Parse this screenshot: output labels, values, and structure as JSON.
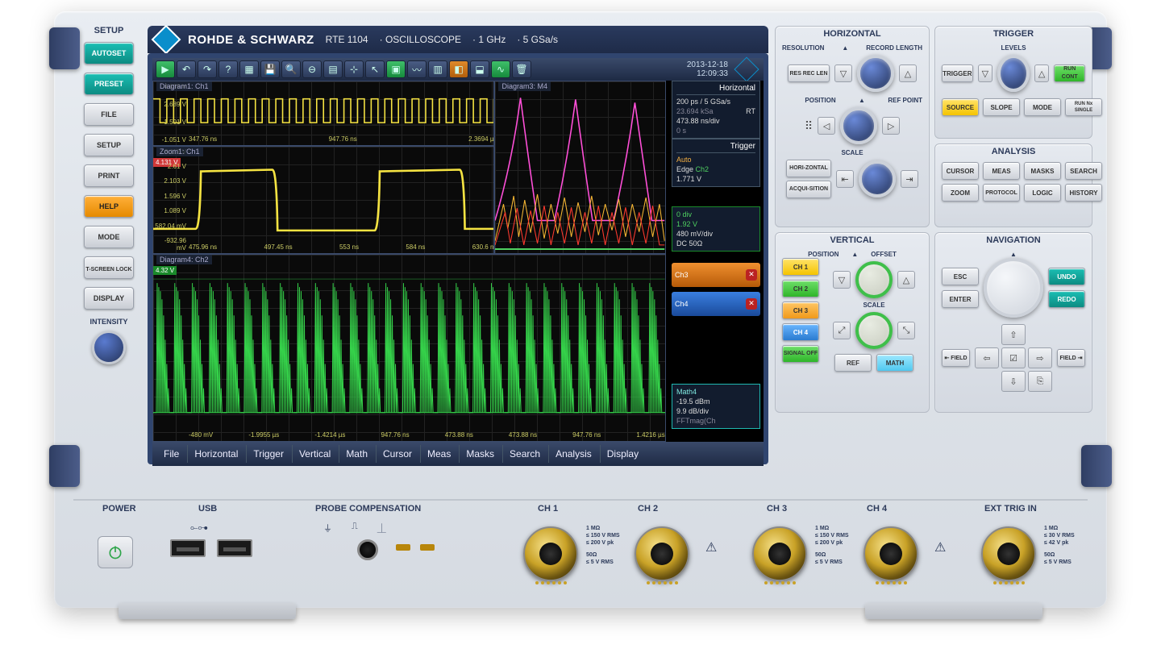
{
  "header": {
    "brand": "ROHDE & SCHWARZ",
    "model": "RTE 1104",
    "product": "OSCILLOSCOPE",
    "bandwidth": "1 GHz",
    "samplerate": "5 GSa/s"
  },
  "setup": {
    "title": "SETUP",
    "keys": [
      "AUTOSET",
      "PRESET",
      "FILE",
      "SETUP",
      "PRINT",
      "HELP",
      "MODE",
      "T-SCREEN LOCK",
      "DISPLAY"
    ],
    "intensity": "INTENSITY"
  },
  "toolbar": {
    "datetime_date": "2013-12-18",
    "datetime_time": "12:09:33"
  },
  "panes": {
    "p1": {
      "label": "Diagram1: Ch1",
      "y_ticks": [
        "4.639 V",
        "2.689 V",
        "1.501 V",
        "-1.051 V"
      ],
      "x_ticks": [
        "347.76 ns",
        "947.76 ns",
        "2.3694 µ"
      ],
      "trace_color": "#f5e342"
    },
    "p2": {
      "label": "Zoom1: Ch1",
      "marker": "4.131 V",
      "y_ticks": [
        "3.117 V",
        "2.61 V",
        "2.103 V",
        "1.596 V",
        "1.089 V",
        "582.04 mV",
        "-932.96 mV"
      ],
      "x_ticks": [
        "475.96 ns",
        "497.45 ns",
        "553 ns",
        "584 ns",
        "630.6 n"
      ],
      "trace_color": "#f5e342"
    },
    "p3": {
      "label": "Diagram3: M4",
      "trace_colors": [
        "#ff4fd8",
        "#4fd060",
        "#f7b733",
        "#ff3a2f"
      ]
    },
    "p4": {
      "label": "Diagram4: Ch2",
      "marker": "4.32 V",
      "y_ticks": [
        "3.84 V",
        "",
        "",
        "",
        "",
        ""
      ],
      "x_ticks": [
        "-1.9955 µs",
        "-1.4214 µs",
        "947.76 ns",
        "473.88 ns",
        "473.88 ns",
        "947.76 ns",
        "1.4216 µs"
      ],
      "bottom_left": "-480 mV",
      "trace_color": "#35d24a"
    }
  },
  "info": {
    "horizontal": {
      "title": "Horizontal",
      "res": "200 ps / 5 GSa/s",
      "reclen": "23.694 kSa",
      "rt": "RT",
      "tdiv": "473.88 ns/div",
      "pos": "0 s"
    },
    "trigger": {
      "title": "Trigger",
      "mode": "Auto",
      "type": "Edge",
      "source": "Ch2",
      "level": "1.771 V"
    },
    "ch2box": {
      "pos": "0 div",
      "vlevel": "1.92 V",
      "vdiv": "480 mV/div",
      "coupling": "DC 50Ω",
      "color": "#35d24a"
    },
    "ch3": {
      "label": "Ch3",
      "color": "#e67a18"
    },
    "ch4": {
      "label": "Ch4",
      "color": "#2a6fd0"
    },
    "math4": {
      "label": "Math4",
      "ref": "-19.5 dBm",
      "vdiv": "9.9 dB/div",
      "fn": "FFTmag(Ch",
      "color": "#1fb7b0"
    }
  },
  "menu": [
    "File",
    "Horizontal",
    "Trigger",
    "Vertical",
    "Math",
    "Cursor",
    "Meas",
    "Masks",
    "Search",
    "Analysis",
    "Display"
  ],
  "horizontal_panel": {
    "title": "HORIZONTAL",
    "resolution": "RESOLUTION",
    "reclen": "RECORD LENGTH",
    "position": "POSITION",
    "refpoint": "REF POINT",
    "scale": "SCALE",
    "keys": {
      "resreclen": "RES REC LEN",
      "horizontal": "HORI-ZONTAL",
      "acquisition": "ACQUI-SITION"
    }
  },
  "trigger_panel": {
    "title": "TRIGGER",
    "levels": "LEVELS",
    "keys": {
      "trigger": "TRIGGER",
      "runcont": "RUN CONT",
      "source": "SOURCE",
      "slope": "SLOPE",
      "mode": "MODE",
      "runnx": "RUN Nx SINGLE"
    }
  },
  "analysis_panel": {
    "title": "ANALYSIS",
    "keys": [
      "CURSOR",
      "MEAS",
      "MASKS",
      "SEARCH",
      "ZOOM",
      "PROTOCOL",
      "LOGIC",
      "HISTORY"
    ]
  },
  "vertical_panel": {
    "title": "VERTICAL",
    "position": "POSITION",
    "offset": "OFFSET",
    "scale": "SCALE",
    "keys": {
      "ch1": "CH 1",
      "ch2": "CH 2",
      "ch3": "CH 3",
      "ch4": "CH 4",
      "signaloff": "SIGNAL OFF",
      "ref": "REF",
      "math": "MATH"
    }
  },
  "navigation_panel": {
    "title": "NAVIGATION",
    "keys": {
      "esc": "ESC",
      "enter": "ENTER",
      "undo": "UNDO",
      "redo": "REDO",
      "fieldl": "⇤ FIELD",
      "fieldr": "FIELD ⇥"
    }
  },
  "bottom": {
    "power": "POWER",
    "usb": "USB",
    "probe": "PROBE COMPENSATION",
    "channels": [
      "CH 1",
      "CH 2",
      "CH 3",
      "CH 4"
    ],
    "exttrig": "EXT TRIG IN",
    "spec_hi": {
      "imp": "1 MΩ",
      "v1": "≤ 150 V RMS",
      "v2": "≤ 200 V pk"
    },
    "spec_lo": {
      "imp": "50Ω",
      "v1": "≤ 5 V RMS"
    },
    "ext_spec_hi": {
      "imp": "1 MΩ",
      "v1": "≤ 30 V RMS",
      "v2": "≤ 42 V pk"
    },
    "ext_spec_lo": {
      "imp": "50Ω",
      "v1": "≤ 5 V RMS"
    }
  },
  "colors": {
    "panel_blue": "#2c3a5a",
    "knob_blue": "#3a5aa0",
    "accent_green": "#35d24a",
    "accent_yellow": "#f5c400",
    "accent_orange": "#f0991a",
    "accent_teal": "#0c8b82"
  }
}
